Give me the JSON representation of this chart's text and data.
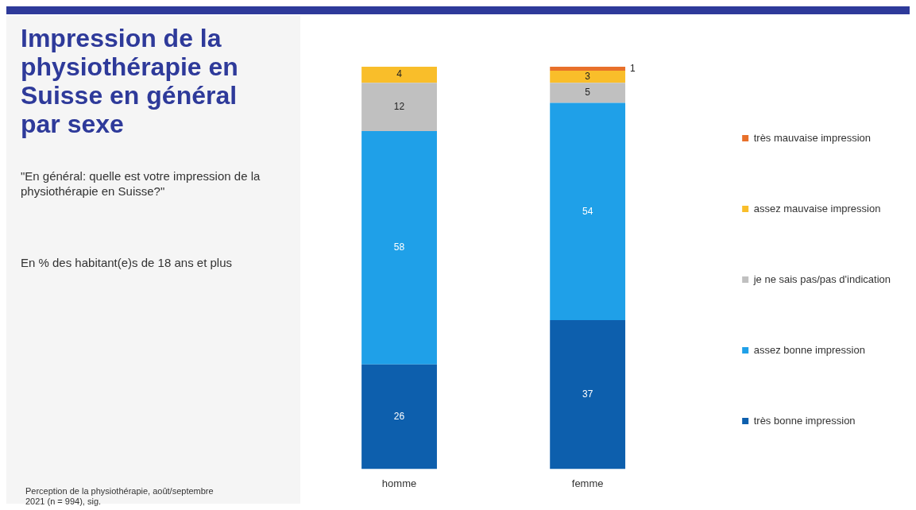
{
  "chart_data": {
    "type": "bar",
    "title": "Impression de la physiothérapie en Suisse en général par sexe",
    "subtitle": "\"En général: quelle est votre impression de la physiothérapie en Suisse?\"",
    "annotations": [
      "En % des habitant(e)s de 18 ans et plus",
      "Perception de la physiothérapie, août/septembre 2021 (n = 994), sig."
    ],
    "categories": [
      "homme",
      "femme"
    ],
    "stacked": true,
    "data_labels": true,
    "legend": "right",
    "series": [
      {
        "name": "très bonne impression",
        "color": "#0d5fad",
        "values": [
          26,
          37
        ]
      },
      {
        "name": "assez bonne impression",
        "color": "#1fa0e8",
        "values": [
          58,
          54
        ]
      },
      {
        "name": "je ne sais pas/pas d'indication",
        "color": "#c0c0c0",
        "values": [
          12,
          5
        ]
      },
      {
        "name": "assez mauvaise impression",
        "color": "#f9be2a",
        "values": [
          4,
          3
        ]
      },
      {
        "name": "très mauvaise impression",
        "color": "#e8702a",
        "values": [
          null,
          1
        ]
      }
    ]
  }
}
